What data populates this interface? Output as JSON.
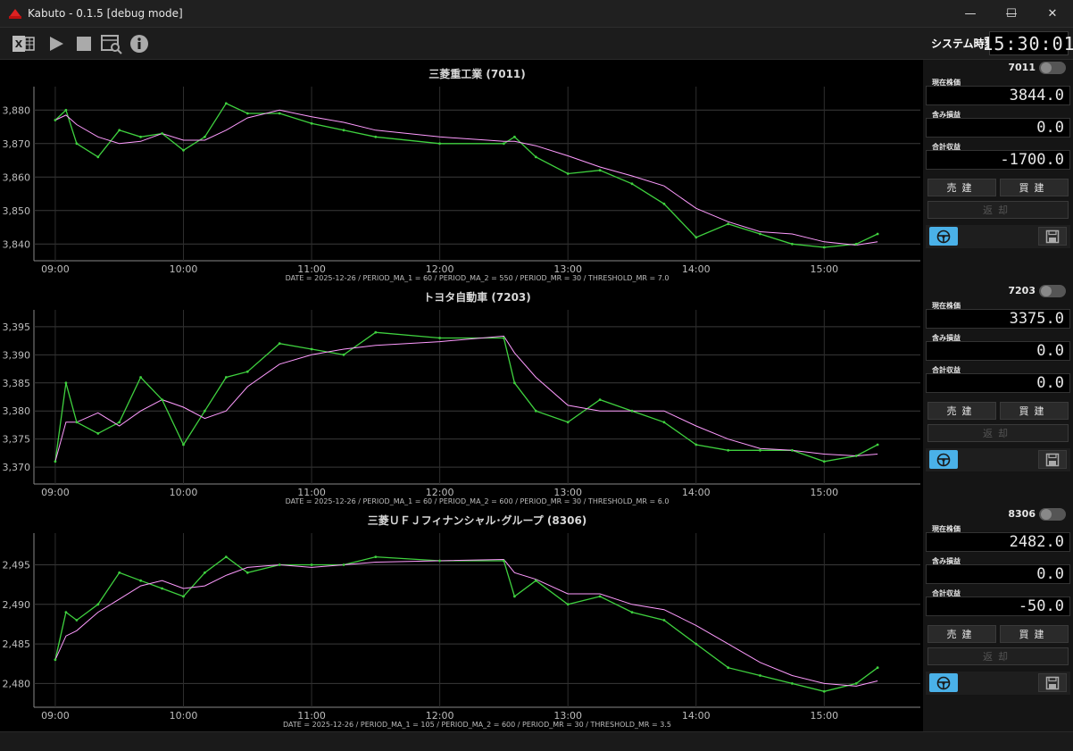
{
  "window": {
    "title": "Kabuto - 0.1.5 [debug mode]",
    "minimize_glyph": "—",
    "maximize_glyph": "☐",
    "close_glyph": "✕"
  },
  "toolbar": {
    "buttons": [
      "excel-icon",
      "play-icon",
      "stop-icon",
      "log-viewer-icon",
      "info-icon"
    ],
    "system_time_label": "システム時刻",
    "system_time": "15:30:01"
  },
  "colors": {
    "price_line": "#3fd13f",
    "ma_line": "#ff9bff",
    "grid": "#2a2a2a",
    "accent": "#4ab1e8"
  },
  "charts": [
    {
      "title": "三菱重工業 (7011)",
      "params": "DATE = 2025-12-26 / PERIOD_MA_1 = 60 / PERIOD_MA_2 = 550 / PERIOD_MR = 30 / THRESHOLD_MR = 7.0",
      "ylim": [
        3835,
        3887
      ],
      "yticks": [
        "3,840",
        "3,850",
        "3,860",
        "3,870",
        "3,880"
      ],
      "ytick_values": [
        3840,
        3850,
        3860,
        3870,
        3880
      ]
    },
    {
      "title": "トヨタ自動車 (7203)",
      "params": "DATE = 2025-12-26 / PERIOD_MA_1 = 60 / PERIOD_MA_2 = 600 / PERIOD_MR = 30 / THRESHOLD_MR = 6.0",
      "ylim": [
        3367,
        3398
      ],
      "yticks": [
        "3,370",
        "3,375",
        "3,380",
        "3,385",
        "3,390",
        "3,395"
      ],
      "ytick_values": [
        3370,
        3375,
        3380,
        3385,
        3390,
        3395
      ]
    },
    {
      "title": "三菱ＵＦＪフィナンシャル･グループ (8306)",
      "params": "DATE = 2025-12-26 / PERIOD_MA_1 = 105 / PERIOD_MA_2 = 600 / PERIOD_MR = 30 / THRESHOLD_MR = 3.5",
      "ylim": [
        2477,
        2499
      ],
      "yticks": [
        "2,480",
        "2,485",
        "2,490",
        "2,495"
      ],
      "ytick_values": [
        2480,
        2485,
        2490,
        2495
      ]
    }
  ],
  "xticks": [
    "09:00",
    "10:00",
    "11:00",
    "12:00",
    "13:00",
    "14:00",
    "15:00"
  ],
  "chart_data": [
    {
      "type": "line",
      "title": "三菱重工業 (7011)",
      "x": [
        "09:00",
        "09:05",
        "09:10",
        "09:20",
        "09:30",
        "09:40",
        "09:50",
        "10:00",
        "10:10",
        "10:20",
        "10:30",
        "10:45",
        "11:00",
        "11:15",
        "11:30",
        "12:00",
        "12:30",
        "12:35",
        "12:45",
        "13:00",
        "13:15",
        "13:30",
        "13:45",
        "14:00",
        "14:15",
        "14:30",
        "14:45",
        "15:00",
        "15:15",
        "15:25"
      ],
      "series": [
        {
          "values": [
            3877,
            3880,
            3870,
            3866,
            3874,
            3872,
            3873,
            3868,
            3872,
            3882,
            3879,
            3879,
            3876,
            3874,
            3872,
            3870,
            3870,
            3872,
            3866,
            3861,
            3862,
            3858,
            3852,
            3842,
            3846,
            3843,
            3840,
            3839,
            3840,
            3843
          ]
        }
      ],
      "ylim": [
        3835,
        3887
      ]
    },
    {
      "type": "line",
      "title": "トヨタ自動車 (7203)",
      "x": [
        "09:00",
        "09:05",
        "09:10",
        "09:20",
        "09:30",
        "09:40",
        "09:50",
        "10:00",
        "10:10",
        "10:20",
        "10:30",
        "10:45",
        "11:00",
        "11:15",
        "11:30",
        "12:00",
        "12:30",
        "12:35",
        "12:45",
        "13:00",
        "13:15",
        "13:30",
        "13:45",
        "14:00",
        "14:15",
        "14:30",
        "14:45",
        "15:00",
        "15:15",
        "15:25"
      ],
      "series": [
        {
          "values": [
            3371,
            3385,
            3378,
            3376,
            3378,
            3386,
            3382,
            3374,
            3380,
            3386,
            3387,
            3392,
            3391,
            3390,
            3394,
            3393,
            3393,
            3385,
            3380,
            3378,
            3382,
            3380,
            3378,
            3374,
            3373,
            3373,
            3373,
            3371,
            3372,
            3374
          ]
        }
      ],
      "ylim": [
        3367,
        3398
      ]
    },
    {
      "type": "line",
      "title": "三菱ＵＦＪフィナンシャル･グループ (8306)",
      "x": [
        "09:00",
        "09:05",
        "09:10",
        "09:20",
        "09:30",
        "09:40",
        "09:50",
        "10:00",
        "10:10",
        "10:20",
        "10:30",
        "10:45",
        "11:00",
        "11:15",
        "11:30",
        "12:00",
        "12:30",
        "12:35",
        "12:45",
        "13:00",
        "13:15",
        "13:30",
        "13:45",
        "14:00",
        "14:15",
        "14:30",
        "14:45",
        "15:00",
        "15:15",
        "15:25"
      ],
      "series": [
        {
          "values": [
            2483,
            2489,
            2488,
            2490,
            2494,
            2493,
            2492,
            2491,
            2494,
            2496,
            2494,
            2495,
            2495,
            2495,
            2496,
            2495.5,
            2495.5,
            2491,
            2493,
            2490,
            2491,
            2489,
            2488,
            2485,
            2482,
            2481,
            2480,
            2479,
            2480,
            2482
          ]
        }
      ],
      "ylim": [
        2477,
        2499
      ]
    }
  ],
  "panels": [
    {
      "code": "7011",
      "label_price": "現在株価",
      "price": "3844.0",
      "label_unrealized": "含み損益",
      "unrealized": "0.0",
      "label_total": "合計収益",
      "total": "-1700.0",
      "sell_label": "売建",
      "buy_label": "買建",
      "repay_label": "返却"
    },
    {
      "code": "7203",
      "label_price": "現在株価",
      "price": "3375.0",
      "label_unrealized": "含み損益",
      "unrealized": "0.0",
      "label_total": "合計収益",
      "total": "0.0",
      "sell_label": "売建",
      "buy_label": "買建",
      "repay_label": "返却"
    },
    {
      "code": "8306",
      "label_price": "現在株価",
      "price": "2482.0",
      "label_unrealized": "含み損益",
      "unrealized": "0.0",
      "label_total": "合計収益",
      "total": "-50.0",
      "sell_label": "売建",
      "buy_label": "買建",
      "repay_label": "返却"
    }
  ]
}
